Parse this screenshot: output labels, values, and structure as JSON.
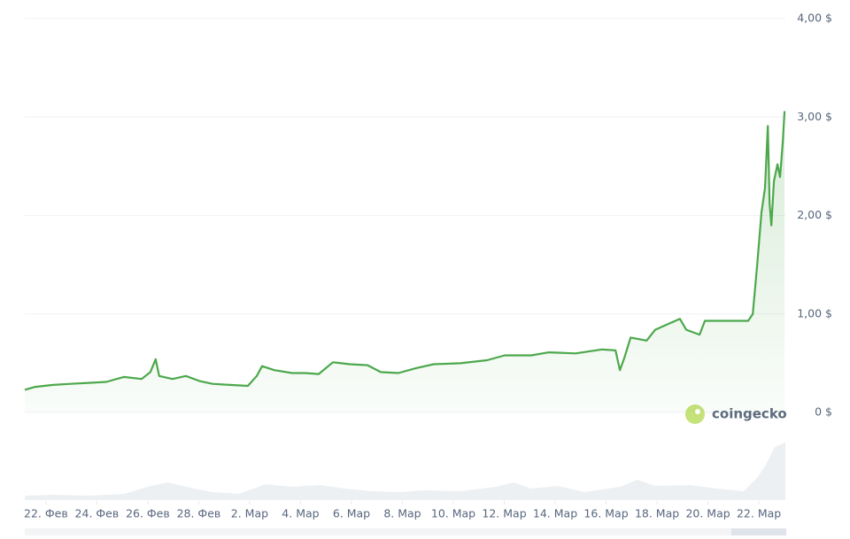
{
  "chart_data": {
    "type": "line",
    "color": "#4ca84c",
    "watermark": "coingecko",
    "grid": true,
    "xlim": [
      52.17,
      82.04
    ],
    "xticks": [
      {
        "value": 53,
        "label": "22. Фев"
      },
      {
        "value": 55,
        "label": "24. Фев"
      },
      {
        "value": 57,
        "label": "26. Фев"
      },
      {
        "value": 59,
        "label": "28. Фев"
      },
      {
        "value": 61,
        "label": "2. Мар"
      },
      {
        "value": 63,
        "label": "4. Мар"
      },
      {
        "value": 65,
        "label": "6. Мар"
      },
      {
        "value": 67,
        "label": "8. Мар"
      },
      {
        "value": 69,
        "label": "10. Мар"
      },
      {
        "value": 71,
        "label": "12. Мар"
      },
      {
        "value": 73,
        "label": "14. Мар"
      },
      {
        "value": 75,
        "label": "16. Мар"
      },
      {
        "value": 77,
        "label": "18. Мар"
      },
      {
        "value": 79,
        "label": "20. Мар"
      },
      {
        "value": 81,
        "label": "22. Мар"
      }
    ],
    "ylim": [
      0,
      4
    ],
    "yticks": [
      {
        "value": 0,
        "label": "0 $"
      },
      {
        "value": 1,
        "label": "1,00 $"
      },
      {
        "value": 2,
        "label": "2,00 $"
      },
      {
        "value": 3,
        "label": "3,00 $"
      },
      {
        "value": 4,
        "label": "4,00 $"
      }
    ],
    "x": [
      52.17,
      52.58,
      53.28,
      53.97,
      54.67,
      55.37,
      56.06,
      56.76,
      57.1,
      57.31,
      57.45,
      57.97,
      58.5,
      59.02,
      59.54,
      60.23,
      60.93,
      61.28,
      61.49,
      61.97,
      62.67,
      63.19,
      63.71,
      64.27,
      64.93,
      65.63,
      66.15,
      66.84,
      67.54,
      68.23,
      69.28,
      70.32,
      71.02,
      72.06,
      72.76,
      73.8,
      74.84,
      75.37,
      75.54,
      75.71,
      75.96,
      76.59,
      76.93,
      77.45,
      77.9,
      78.15,
      78.67,
      78.88,
      79.71,
      80.58,
      80.76,
      80.93,
      81.1,
      81.24,
      81.35,
      81.42,
      81.49,
      81.59,
      81.73,
      81.83,
      81.94,
      82.01
    ],
    "values": [
      0.23,
      0.26,
      0.28,
      0.29,
      0.3,
      0.31,
      0.36,
      0.34,
      0.41,
      0.54,
      0.37,
      0.34,
      0.37,
      0.32,
      0.29,
      0.28,
      0.27,
      0.37,
      0.47,
      0.43,
      0.4,
      0.4,
      0.39,
      0.51,
      0.49,
      0.48,
      0.41,
      0.4,
      0.45,
      0.49,
      0.5,
      0.53,
      0.58,
      0.58,
      0.61,
      0.6,
      0.64,
      0.63,
      0.43,
      0.55,
      0.76,
      0.73,
      0.84,
      0.9,
      0.95,
      0.84,
      0.79,
      0.93,
      0.93,
      0.93,
      1.0,
      1.49,
      2.03,
      2.28,
      2.91,
      2.12,
      1.9,
      2.35,
      2.52,
      2.39,
      2.75,
      3.06
    ]
  }
}
